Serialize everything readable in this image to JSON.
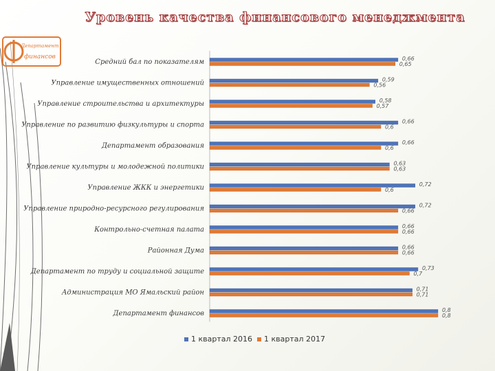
{
  "title": "Уровень качества финансового менеджмента",
  "logo": {
    "top_text": "Департамент",
    "bottom_text": "финансов"
  },
  "colors": {
    "series_2016": "#4f73b8",
    "series_2017": "#e07a35",
    "title_stroke": "#a23b3b",
    "logo": "#e07a35"
  },
  "chart_data": {
    "type": "bar",
    "orientation": "horizontal",
    "categories": [
      "Средний бал по показателям",
      "Управление имущественных отношений",
      "Управление строительства и архитектуры",
      "Управление по развитию физкультуры и спорта",
      "Департамент образования",
      "Управление культуры и молодежной политики",
      "Управление ЖКК и энергетики",
      "Управление природно-ресурсного регулирования",
      "Контрольно-счетная палата",
      "Районная Дума",
      "Департамент по труду и социальной защите",
      "Администрация МО Ямальский район",
      "Департамент финансов"
    ],
    "series": [
      {
        "name": "1 квартал 2016",
        "values": [
          0.66,
          0.59,
          0.58,
          0.66,
          0.66,
          0.63,
          0.72,
          0.72,
          0.66,
          0.66,
          0.73,
          0.71,
          0.8
        ]
      },
      {
        "name": "1 квартал 2017",
        "values": [
          0.65,
          0.56,
          0.57,
          0.6,
          0.6,
          0.63,
          0.6,
          0.66,
          0.66,
          0.66,
          0.7,
          0.71,
          0.8
        ]
      }
    ],
    "value_labels_2016": [
      "0,66",
      "0,59",
      "0,58",
      "0,66",
      "0,66",
      "0,63",
      "0,72",
      "0,72",
      "0,66",
      "0,66",
      "0,73",
      "0,71",
      "0,8"
    ],
    "value_labels_2017": [
      "0,65",
      "0,56",
      "0,57",
      "0,6",
      "0,6",
      "0,63",
      "0,6",
      "0,66",
      "0,66",
      "0,66",
      "0,7",
      "0,71",
      "0,8"
    ],
    "xlim": [
      0,
      0.8
    ],
    "legend_position": "bottom"
  }
}
